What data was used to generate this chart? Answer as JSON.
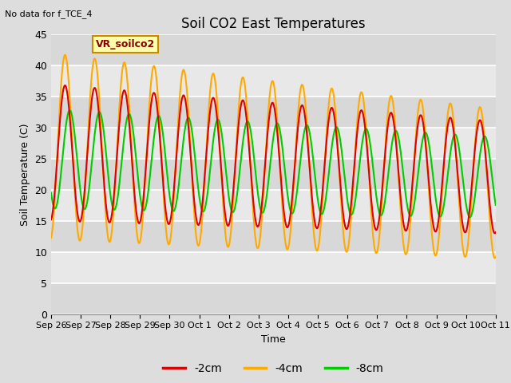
{
  "title": "Soil CO2 East Temperatures",
  "xlabel": "Time",
  "ylabel": "Soil Temperature (C)",
  "top_left_text": "No data for f_TCE_4",
  "legend_label": "VR_soilco2",
  "ylim": [
    0,
    45
  ],
  "yticks": [
    0,
    5,
    10,
    15,
    20,
    25,
    30,
    35,
    40,
    45
  ],
  "date_labels": [
    "Sep 26",
    "Sep 27",
    "Sep 28",
    "Sep 29",
    "Sep 30",
    "Oct 1",
    "Oct 2",
    "Oct 3",
    "Oct 4",
    "Oct 5",
    "Oct 6",
    "Oct 7",
    "Oct 8",
    "Oct 9",
    "Oct 10",
    "Oct 11"
  ],
  "series": {
    "2cm": {
      "color": "#dd0000",
      "label": "-2cm"
    },
    "4cm": {
      "color": "#ffaa00",
      "label": "-4cm"
    },
    "8cm": {
      "color": "#00cc00",
      "label": "-8cm"
    }
  },
  "bg_color": "#dddddd",
  "plot_bg_light": "#e8e8e8",
  "plot_bg_dark": "#d8d8d8",
  "grid_color": "#ffffff"
}
